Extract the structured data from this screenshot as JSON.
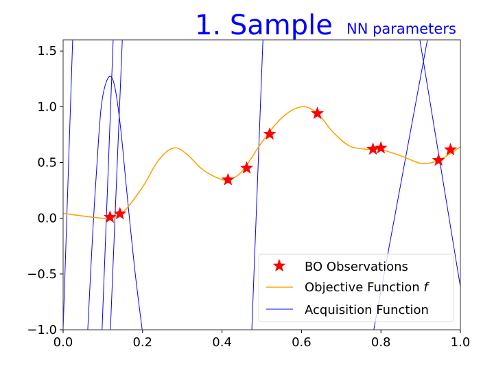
{
  "chart_data": {
    "type": "line",
    "title": "1. Sample",
    "subtitle": "NN parameters",
    "title_color": "#0000ff",
    "xlabel": "",
    "ylabel": "",
    "xlim": [
      0,
      1
    ],
    "ylim": [
      -1,
      1.6
    ],
    "xticks": [
      0.0,
      0.2,
      0.4,
      0.6,
      0.8,
      1.0
    ],
    "xtick_labels": [
      "0.0",
      "0.2",
      "0.4",
      "0.6",
      "0.8",
      "1.0"
    ],
    "yticks": [
      -1.0,
      -0.5,
      0.0,
      0.5,
      1.0,
      1.5
    ],
    "ytick_labels": [
      "−1.0",
      "−0.5",
      "0.0",
      "0.5",
      "1.0",
      "1.5"
    ],
    "grid": false,
    "legend_position": "bottom-right",
    "series": [
      {
        "name": "BO Observations",
        "kind": "scatter",
        "marker": "star",
        "color": "#ff0000",
        "x": [
          0.118,
          0.143,
          0.415,
          0.462,
          0.52,
          0.64,
          0.78,
          0.8,
          0.945,
          0.975
        ],
        "y": [
          0.01,
          0.04,
          0.345,
          0.45,
          0.755,
          0.94,
          0.62,
          0.63,
          0.52,
          0.615
        ]
      },
      {
        "name": "Objective Function",
        "name_italic_suffix": "f",
        "kind": "line",
        "color": "#ffa500",
        "x": [
          0,
          0.05,
          0.1,
          0.12,
          0.15,
          0.2,
          0.24,
          0.278,
          0.31,
          0.35,
          0.39,
          0.415,
          0.45,
          0.5,
          0.55,
          0.6,
          0.64,
          0.68,
          0.72,
          0.76,
          0.8,
          0.85,
          0.905,
          0.95,
          1.0
        ],
        "y": [
          0.045,
          0.02,
          0.0,
          0.005,
          0.05,
          0.28,
          0.52,
          0.63,
          0.58,
          0.44,
          0.36,
          0.345,
          0.42,
          0.68,
          0.9,
          1.0,
          0.94,
          0.77,
          0.65,
          0.62,
          0.615,
          0.56,
          0.49,
          0.53,
          0.64
        ]
      },
      {
        "name": "Acquisition Function",
        "kind": "line",
        "color": "#0000ff",
        "segments": [
          {
            "x": [
              0.0,
              0.024
            ],
            "y": [
              -1.0,
              1.6
            ]
          },
          {
            "x": [
              0.062,
              0.075,
              0.09,
              0.1,
              0.116,
              0.13,
              0.145,
              0.16,
              0.18,
              0.199
            ],
            "y": [
              -1.0,
              -0.1,
              0.75,
              1.1,
              1.27,
              1.18,
              0.8,
              0.25,
              -0.45,
              -1.0
            ]
          },
          {
            "x": [
              0.098,
              0.126
            ],
            "y": [
              -1.0,
              1.6
            ]
          },
          {
            "x": [
              0.119,
              0.149
            ],
            "y": [
              -1.0,
              1.6
            ]
          },
          {
            "x": [
              0.475,
              0.503
            ],
            "y": [
              -1.0,
              1.6
            ]
          },
          {
            "x": [
              0.782,
              0.917
            ],
            "y": [
              -1.0,
              1.6
            ]
          },
          {
            "x": [
              0.898,
              1.0
            ],
            "y": [
              1.6,
              -0.615
            ]
          }
        ]
      }
    ]
  }
}
